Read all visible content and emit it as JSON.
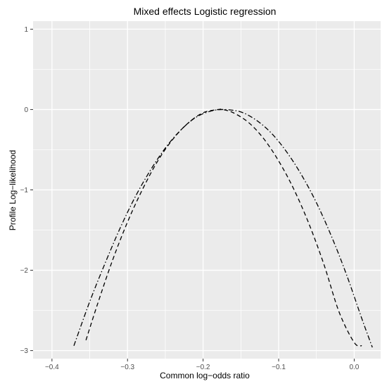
{
  "chart_data": {
    "type": "line",
    "title": "Mixed effects Logistic regression",
    "xlabel": "Common log−odds ratio",
    "ylabel": "Profile Log−likelihood",
    "xlim": [
      -0.425,
      0.035
    ],
    "ylim": [
      -3.1,
      1.1
    ],
    "x_ticks": [
      -0.4,
      -0.3,
      -0.2,
      -0.1,
      0.0
    ],
    "x_tick_labels": [
      "−0.4",
      "−0.3",
      "−0.2",
      "−0.1",
      "0.0"
    ],
    "y_ticks": [
      1,
      0,
      -1,
      -2,
      -3
    ],
    "y_tick_labels": [
      "1",
      "0",
      "−1",
      "−2",
      "−3"
    ],
    "grid": true,
    "legend": "none",
    "colors": {
      "panel_background": "#ebebeb",
      "grid": "#ffffff",
      "line": "#000000",
      "tick_text": "#4d4d4d"
    },
    "series": [
      {
        "style": "dashed",
        "x": [
          -0.355,
          -0.34,
          -0.32,
          -0.3,
          -0.28,
          -0.26,
          -0.24,
          -0.22,
          -0.2,
          -0.18,
          -0.174,
          -0.16,
          -0.14,
          -0.12,
          -0.1,
          -0.08,
          -0.06,
          -0.04,
          -0.02,
          0.0,
          0.01
        ],
        "y": [
          -2.87,
          -2.43,
          -1.88,
          -1.4,
          -0.99,
          -0.64,
          -0.37,
          -0.17,
          -0.04,
          0.0,
          0.0,
          -0.04,
          -0.16,
          -0.36,
          -0.64,
          -0.99,
          -1.42,
          -1.93,
          -2.52,
          -2.9,
          -2.94
        ]
      },
      {
        "style": "dashdot",
        "x": [
          -0.371,
          -0.35,
          -0.33,
          -0.31,
          -0.29,
          -0.27,
          -0.25,
          -0.23,
          -0.21,
          -0.19,
          -0.172,
          -0.15,
          -0.13,
          -0.11,
          -0.09,
          -0.07,
          -0.05,
          -0.03,
          -0.01,
          0.01,
          0.024
        ],
        "y": [
          -2.94,
          -2.39,
          -1.92,
          -1.48,
          -1.09,
          -0.76,
          -0.48,
          -0.26,
          -0.1,
          -0.02,
          0.0,
          -0.03,
          -0.13,
          -0.29,
          -0.52,
          -0.81,
          -1.16,
          -1.58,
          -2.06,
          -2.6,
          -2.96
        ]
      }
    ]
  }
}
